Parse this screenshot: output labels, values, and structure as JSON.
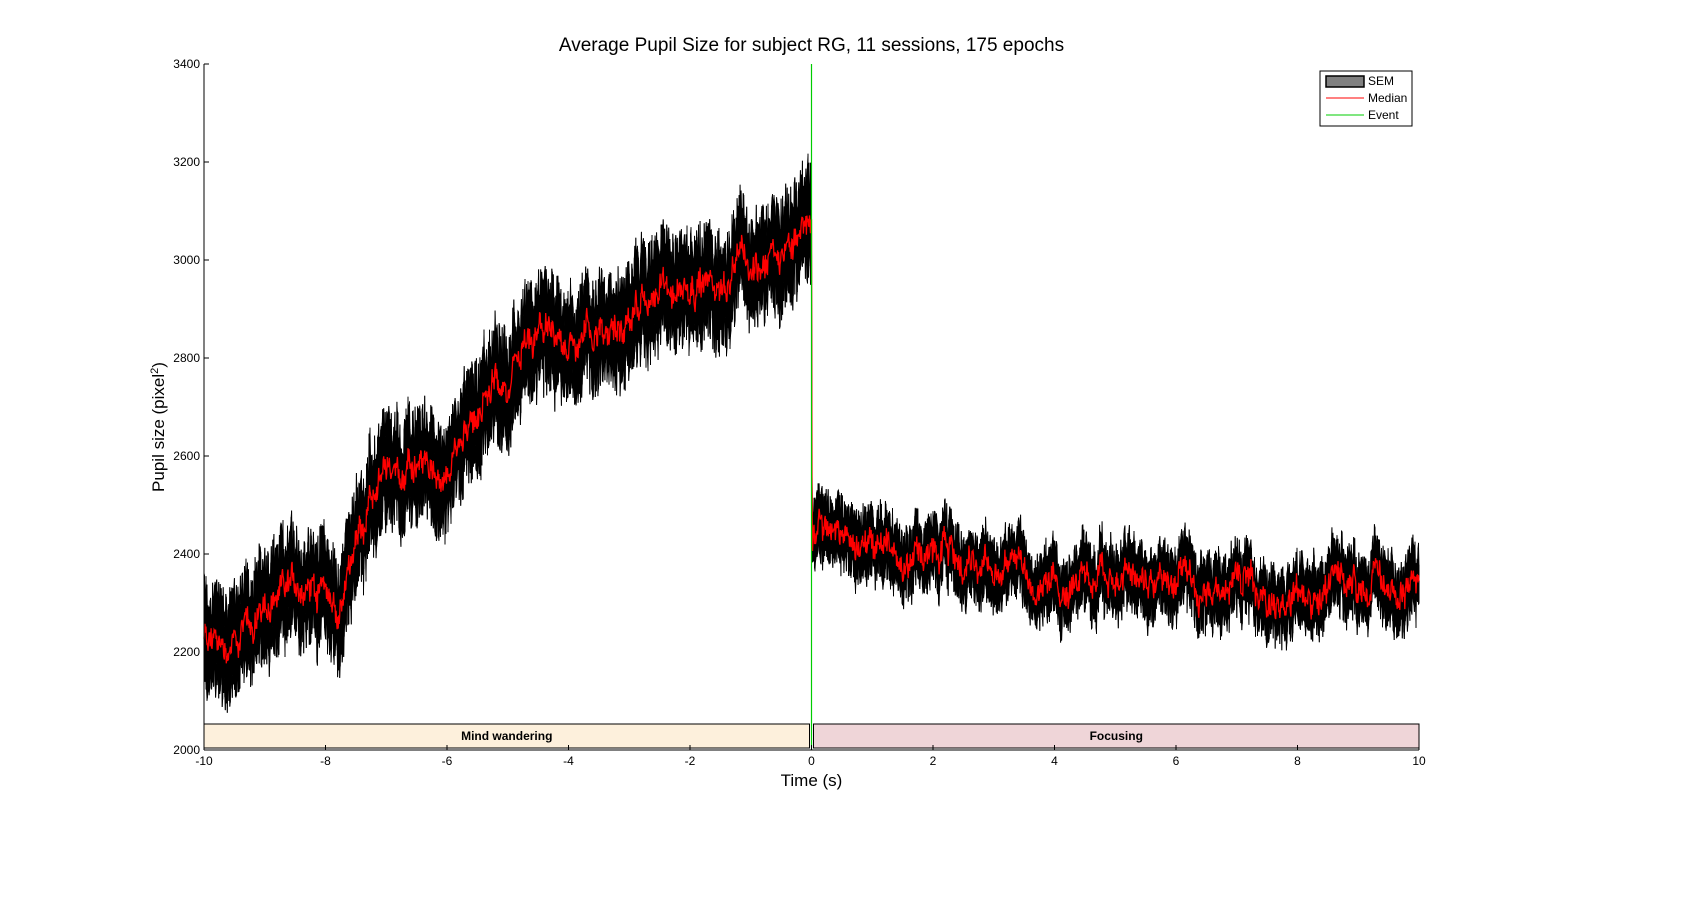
{
  "chart_data": {
    "type": "line",
    "title": "Average Pupil Size for subject RG, 11 sessions, 175 epochs",
    "xlabel": "Time (s)",
    "ylabel": "Pupil size (pixel",
    "ylabel_sup": "2",
    "ylabel_end": ")",
    "xlim": [
      -10,
      10
    ],
    "ylim": [
      2000,
      3400
    ],
    "xticks": [
      -10,
      -8,
      -6,
      -4,
      -2,
      0,
      2,
      4,
      6,
      8,
      10
    ],
    "yticks": [
      2000,
      2200,
      2400,
      2600,
      2800,
      3000,
      3200,
      3400
    ],
    "grid": false,
    "legend_position": "top-right",
    "legend": [
      {
        "name": "SEM",
        "kind": "patch",
        "color": "#808080"
      },
      {
        "name": "Median",
        "kind": "line",
        "color": "#ff0000"
      },
      {
        "name": "Event",
        "kind": "line",
        "color": "#00cc00"
      }
    ],
    "event_x": 0,
    "phases": [
      {
        "label": "Mind wandering",
        "x_start": -10,
        "x_end": 0,
        "color": "#fdf0dc"
      },
      {
        "label": "Focusing",
        "x_start": 0,
        "x_end": 10,
        "color": "#efd5d8"
      }
    ],
    "series": [
      {
        "name": "Median",
        "color": "#ff0000",
        "sem_color": "#000000",
        "x": [
          -10,
          -9.5,
          -9,
          -8.5,
          -8,
          -7.8,
          -7.5,
          -7,
          -6.5,
          -6,
          -5.5,
          -5,
          -4.5,
          -4,
          -3.5,
          -3,
          -2.5,
          -2,
          -1.5,
          -1,
          -0.5,
          -0.1,
          0,
          0.01,
          0.5,
          1,
          1.5,
          2,
          2.5,
          3,
          3.5,
          4,
          4.5,
          5,
          5.5,
          6,
          6.5,
          7,
          7.5,
          8,
          8.5,
          9,
          9.5,
          10
        ],
        "y": [
          2230,
          2220,
          2280,
          2340,
          2340,
          2270,
          2420,
          2560,
          2580,
          2560,
          2700,
          2750,
          2850,
          2830,
          2870,
          2880,
          2930,
          2960,
          2950,
          2990,
          3010,
          3080,
          3100,
          2450,
          2430,
          2420,
          2410,
          2390,
          2390,
          2380,
          2370,
          2350,
          2340,
          2350,
          2340,
          2340,
          2330,
          2340,
          2320,
          2320,
          2330,
          2340,
          2330,
          2340
        ]
      }
    ]
  }
}
